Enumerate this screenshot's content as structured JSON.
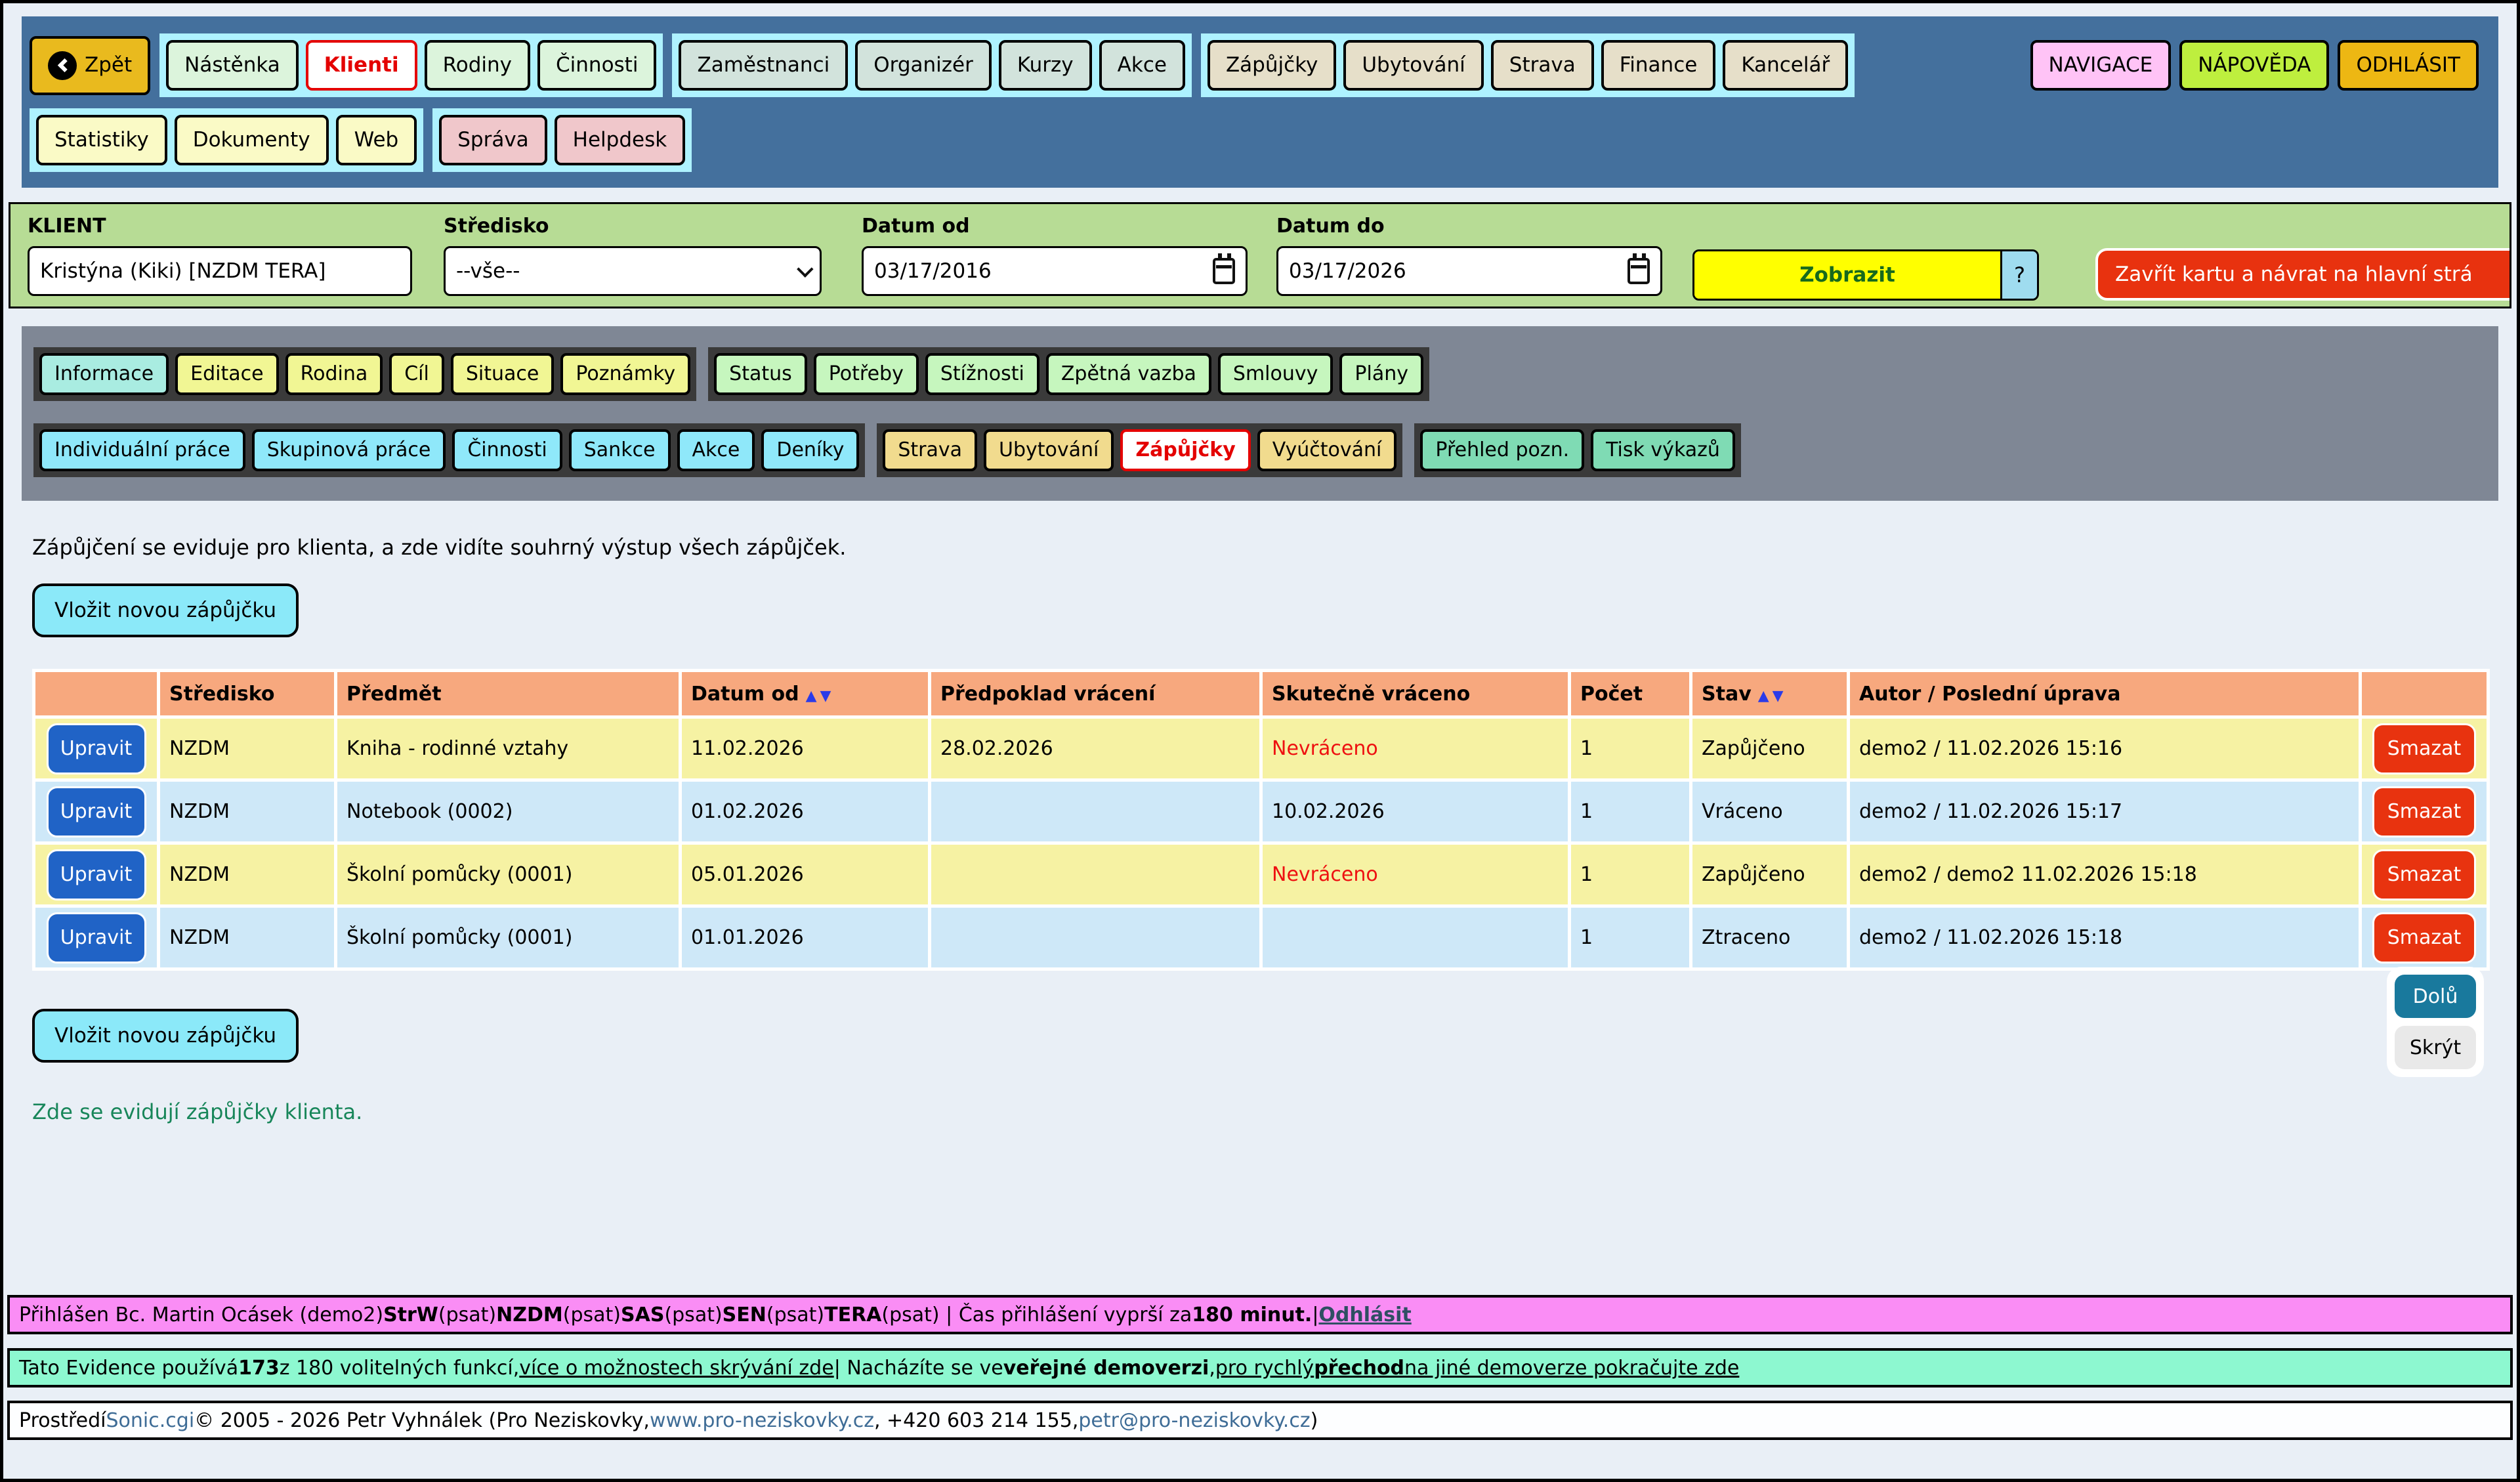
{
  "nav": {
    "back_label": "Zpět",
    "main": [
      "Nástěnka",
      "Klienti",
      "Rodiny",
      "Činnosti"
    ],
    "people": [
      "Zaměstnanci",
      "Organizér",
      "Kurzy",
      "Akce"
    ],
    "services": [
      "Zápůjčky",
      "Ubytování",
      "Strava",
      "Finance",
      "Kancelář"
    ],
    "system": [
      "NAVIGACE",
      "NÁPOVĚDA",
      "ODHLÁSIT"
    ],
    "row2a": [
      "Statistiky",
      "Dokumenty",
      "Web"
    ],
    "row2b": [
      "Správa",
      "Helpdesk"
    ]
  },
  "filters": {
    "klient_label": "KLIENT",
    "klient_value": "Kristýna (Kiki) [NZDM TERA]",
    "stredisko_label": "Středisko",
    "stredisko_value": "--vše--",
    "datum_od_label": "Datum od",
    "datum_od_value": "03/17/2016",
    "datum_do_label": "Datum do",
    "datum_do_value": "03/17/2026",
    "zobrazit_label": "Zobrazit",
    "help_label": "?",
    "close_label": "Zavřít kartu a návrat na hlavní strá"
  },
  "tabs": {
    "client1": [
      "Informace",
      "Editace",
      "Rodina",
      "Cíl",
      "Situace",
      "Poznámky"
    ],
    "client2": [
      "Status",
      "Potřeby",
      "Stížnosti",
      "Zpětná vazba",
      "Smlouvy",
      "Plány"
    ],
    "work": [
      "Individuální práce",
      "Skupinová práce",
      "Činnosti",
      "Sankce",
      "Akce",
      "Deníky"
    ],
    "services": [
      "Strava",
      "Ubytování",
      "Zápůjčky",
      "Vyúčtování"
    ],
    "reports": [
      "Přehled pozn.",
      "Tisk výkazů"
    ]
  },
  "content": {
    "intro": "Zápůjčení se eviduje pro klienta, a zde vidíte souhrný výstup všech zápůjček.",
    "add_button": "Vložit novou zápůjčku",
    "note": "Zde se evidují zápůjčky klienta."
  },
  "table": {
    "edit_label": "Upravit",
    "delete_label": "Smazat",
    "sort_icon": "▲▼",
    "headers": {
      "stredisko": "Středisko",
      "predmet": "Předmět",
      "datum_od": "Datum od",
      "predpoklad": "Předpoklad vrácení",
      "skutecne": "Skutečně vráceno",
      "pocet": "Počet",
      "stav": "Stav",
      "autor": "Autor / Poslední úprava"
    },
    "rows": [
      {
        "stredisko": "NZDM",
        "predmet": "Kniha - rodinné vztahy",
        "datum_od": "11.02.2026",
        "predpoklad": "28.02.2026",
        "skutecne": "Nevráceno",
        "pocet": "1",
        "stav": "Zapůjčeno",
        "autor": "demo2 / 11.02.2026 15:16"
      },
      {
        "stredisko": "NZDM",
        "predmet": "Notebook (0002)",
        "datum_od": "01.02.2026",
        "predpoklad": "",
        "skutecne": "10.02.2026",
        "pocet": "1",
        "stav": "Vráceno",
        "autor": "demo2 / 11.02.2026 15:17"
      },
      {
        "stredisko": "NZDM",
        "predmet": "Školní pomůcky (0001)",
        "datum_od": "05.01.2026",
        "predpoklad": "",
        "skutecne": "Nevráceno",
        "pocet": "1",
        "stav": "Zapůjčeno",
        "autor": "demo2 / demo2 11.02.2026 15:18"
      },
      {
        "stredisko": "NZDM",
        "predmet": "Školní pomůcky (0001)",
        "datum_od": "01.01.2026",
        "predpoklad": "",
        "skutecne": "",
        "pocet": "1",
        "stav": "Ztraceno",
        "autor": "demo2 / 11.02.2026 15:18"
      }
    ]
  },
  "widget": {
    "down": "Dolů",
    "hide": "Skrýt"
  },
  "footer": {
    "session": [
      {
        "t": "Přihlášen Bc. Martin Ocásek (demo2) "
      },
      {
        "t": "StrW",
        "b": 1
      },
      {
        "t": " (psat) "
      },
      {
        "t": "NZDM",
        "b": 1
      },
      {
        "t": " (psat) "
      },
      {
        "t": "SAS",
        "b": 1
      },
      {
        "t": " (psat) "
      },
      {
        "t": "SEN",
        "b": 1
      },
      {
        "t": " (psat) "
      },
      {
        "t": "TERA",
        "b": 1
      },
      {
        "t": " (psat)  |  Čas přihlášení vyprší za "
      },
      {
        "t": "180 minut.",
        "b": 1
      },
      {
        "t": "  |  "
      },
      {
        "t": "Odhlásit",
        "b": 1,
        "u": 1,
        "c": "#2F4F63",
        "link": 1,
        "name": "logout-link"
      }
    ],
    "info": [
      {
        "t": "Tato Evidence používá "
      },
      {
        "t": "173",
        "b": 1
      },
      {
        "t": " z 180 volitelných funkcí, "
      },
      {
        "t": "více o možnostech skrývání zde",
        "u": 1,
        "link": 1,
        "name": "hide-options-link"
      },
      {
        "t": "  |  Nacházíte se ve "
      },
      {
        "t": "veřejné demoverzi",
        "b": 1
      },
      {
        "t": ", "
      },
      {
        "t": "pro rychlý ",
        "u": 1,
        "link": 1,
        "name": "demo-switch-link"
      },
      {
        "t": "přechod",
        "u": 1,
        "b": 1,
        "link": 1,
        "name": "demo-switch-link-bold"
      },
      {
        "t": " na jiné demoverze pokračujte zde",
        "u": 1,
        "link": 1,
        "name": "demo-switch-link-tail"
      }
    ],
    "credits": [
      {
        "t": "Prostředí "
      },
      {
        "t": "Sonic.cgi",
        "c": "#3E6C96",
        "link": 1,
        "name": "sonic-link"
      },
      {
        "t": " © 2005 - 2026 Petr Vyhnálek (Pro Neziskovky, "
      },
      {
        "t": "www.pro-neziskovky.cz",
        "c": "#3E6C96",
        "link": 1,
        "name": "website-link"
      },
      {
        "t": ", +420 603 214 155, "
      },
      {
        "t": "petr@pro-neziskovky.cz",
        "c": "#3E6C96",
        "link": 1,
        "name": "email-link"
      },
      {
        "t": ")"
      }
    ]
  }
}
